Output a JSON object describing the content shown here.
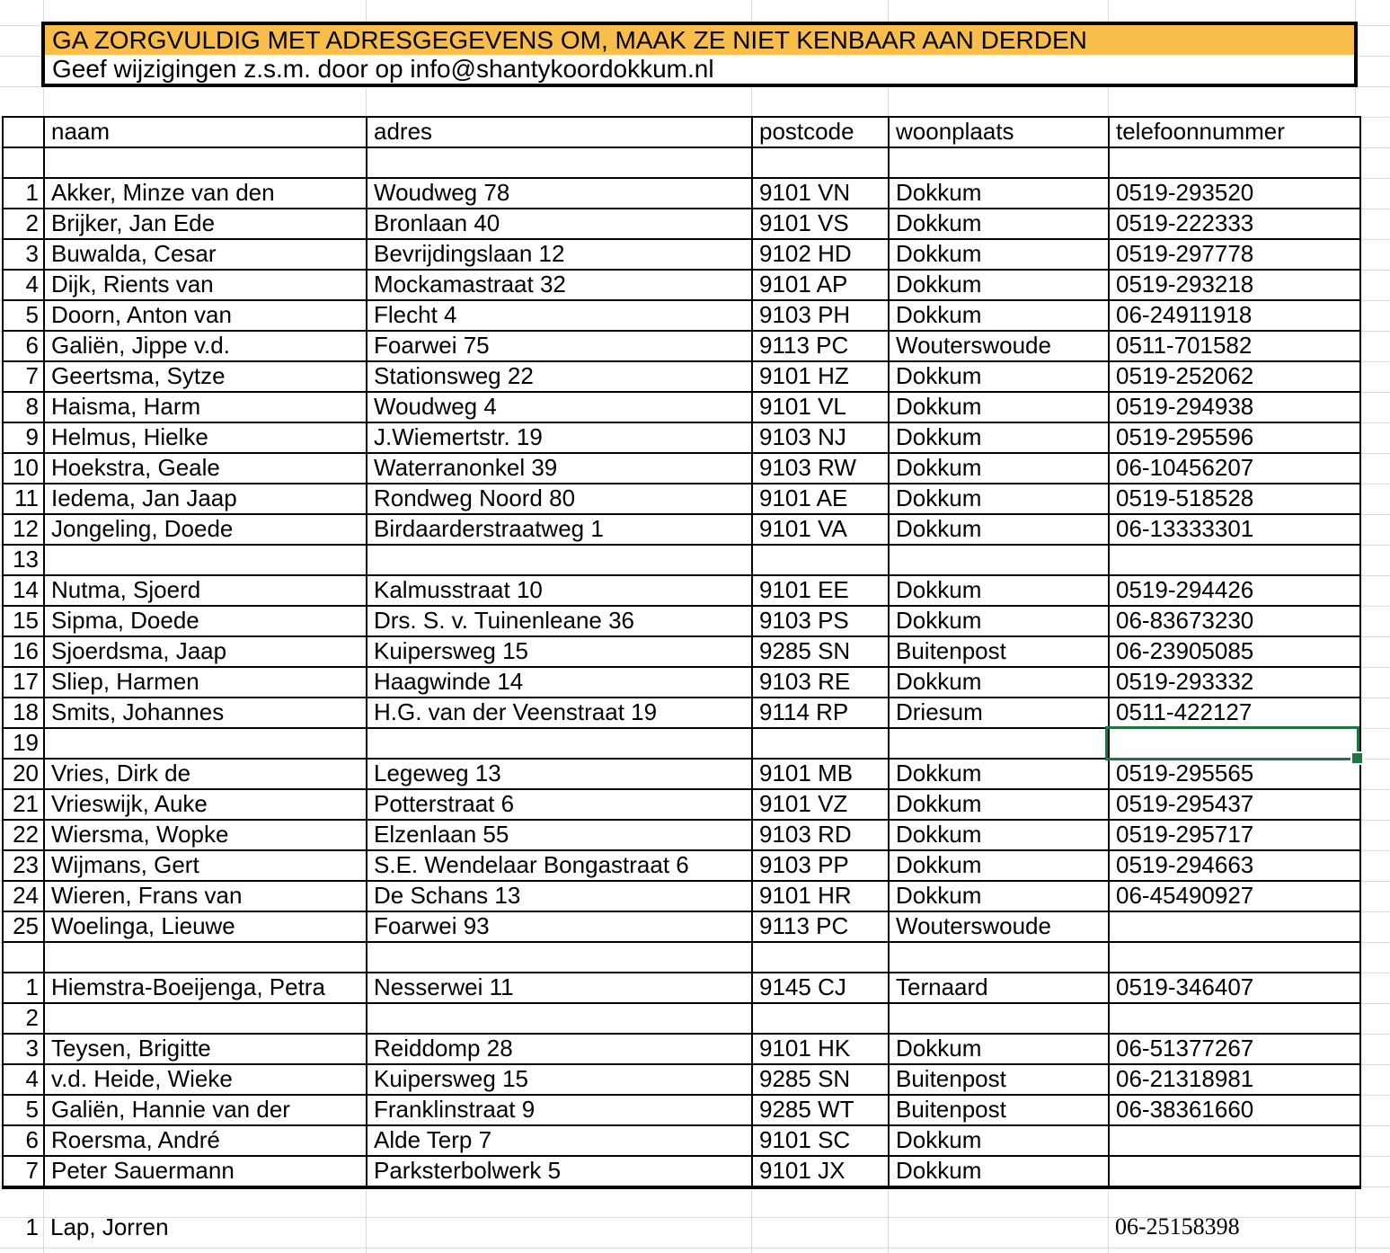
{
  "colors": {
    "banner_bg": "#F9BD4B",
    "selection": "#217346",
    "gridline": "#DADADA",
    "border": "#000000"
  },
  "banner": {
    "line1": "GA ZORGVULDIG MET ADRESGEGEVENS OM, MAAK ZE NIET KENBAAR AAN DERDEN",
    "line2": "Geef wijzigingen z.s.m. door op info@shantykoordokkum.nl"
  },
  "columns": {
    "naam": "naam",
    "adres": "adres",
    "postcode": "postcode",
    "woonplaats": "woonplaats",
    "telefoonnummer": "telefoonnummer"
  },
  "members": [
    {
      "num": "1",
      "naam": "Akker, Minze van den",
      "adres": "Woudweg 78",
      "postcode": "9101 VN",
      "woonplaats": "Dokkum",
      "telefoon": "0519-293520"
    },
    {
      "num": "2",
      "naam": "Brijker, Jan Ede",
      "adres": "Bronlaan 40",
      "postcode": "9101 VS",
      "woonplaats": "Dokkum",
      "telefoon": "0519-222333"
    },
    {
      "num": "3",
      "naam": "Buwalda, Cesar",
      "adres": "Bevrijdingslaan 12",
      "postcode": "9102 HD",
      "woonplaats": "Dokkum",
      "telefoon": "0519-297778"
    },
    {
      "num": "4",
      "naam": "Dijk, Rients van",
      "adres": "Mockamastraat 32",
      "postcode": "9101 AP",
      "woonplaats": "Dokkum",
      "telefoon": "0519-293218"
    },
    {
      "num": "5",
      "naam": "Doorn, Anton van",
      "adres": "Flecht 4",
      "postcode": "9103 PH",
      "woonplaats": "Dokkum",
      "telefoon": "06-24911918"
    },
    {
      "num": "6",
      "naam": "Galiën, Jippe v.d.",
      "adres": "Foarwei 75",
      "postcode": "9113 PC",
      "woonplaats": "Wouterswoude",
      "telefoon": "0511-701582"
    },
    {
      "num": "7",
      "naam": "Geertsma, Sytze",
      "adres": "Stationsweg 22",
      "postcode": "9101 HZ",
      "woonplaats": "Dokkum",
      "telefoon": "0519-252062"
    },
    {
      "num": "8",
      "naam": "Haisma, Harm",
      "adres": "Woudweg 4",
      "postcode": "9101 VL",
      "woonplaats": "Dokkum",
      "telefoon": "0519-294938"
    },
    {
      "num": "9",
      "naam": "Helmus, Hielke",
      "adres": "J.Wiemertstr. 19",
      "postcode": "9103 NJ",
      "woonplaats": "Dokkum",
      "telefoon": "0519-295596"
    },
    {
      "num": "10",
      "naam": "Hoekstra, Geale",
      "adres": "Waterranonkel 39",
      "postcode": "9103 RW",
      "woonplaats": "Dokkum",
      "telefoon": "06-10456207"
    },
    {
      "num": "11",
      "naam": "Iedema, Jan Jaap",
      "adres": "Rondweg Noord 80",
      "postcode": "9101 AE",
      "woonplaats": "Dokkum",
      "telefoon": "0519-518528"
    },
    {
      "num": "12",
      "naam": "Jongeling, Doede",
      "adres": "Birdaarderstraatweg 1",
      "postcode": "9101 VA",
      "woonplaats": "Dokkum",
      "telefoon": "06-13333301"
    },
    {
      "num": "13",
      "naam": "",
      "adres": "",
      "postcode": "",
      "woonplaats": "",
      "telefoon": ""
    },
    {
      "num": "14",
      "naam": "Nutma, Sjoerd",
      "adres": "Kalmusstraat 10",
      "postcode": "9101 EE",
      "woonplaats": "Dokkum",
      "telefoon": "0519-294426"
    },
    {
      "num": "15",
      "naam": "Sipma, Doede",
      "adres": "Drs. S. v. Tuinenleane 36",
      "postcode": "9103 PS",
      "woonplaats": "Dokkum",
      "telefoon": "06-83673230"
    },
    {
      "num": "16",
      "naam": "Sjoerdsma, Jaap",
      "adres": "Kuipersweg 15",
      "postcode": "9285 SN",
      "woonplaats": "Buitenpost",
      "telefoon": "06-23905085"
    },
    {
      "num": "17",
      "naam": "Sliep, Harmen",
      "adres": "Haagwinde 14",
      "postcode": "9103 RE",
      "woonplaats": "Dokkum",
      "telefoon": "0519-293332"
    },
    {
      "num": "18",
      "naam": "Smits, Johannes",
      "adres": "H.G. van der Veenstraat 19",
      "postcode": "9114 RP",
      "woonplaats": "Driesum",
      "telefoon": "0511-422127"
    },
    {
      "num": "19",
      "naam": "",
      "adres": "",
      "postcode": "",
      "woonplaats": "",
      "telefoon": ""
    },
    {
      "num": "20",
      "naam": "Vries, Dirk de",
      "adres": "Legeweg 13",
      "postcode": "9101 MB",
      "woonplaats": "Dokkum",
      "telefoon": "0519-295565"
    },
    {
      "num": "21",
      "naam": "Vrieswijk, Auke",
      "adres": "Potterstraat 6",
      "postcode": "9101 VZ",
      "woonplaats": "Dokkum",
      "telefoon": "0519-295437"
    },
    {
      "num": "22",
      "naam": "Wiersma, Wopke",
      "adres": "Elzenlaan 55",
      "postcode": "9103 RD",
      "woonplaats": "Dokkum",
      "telefoon": "0519-295717"
    },
    {
      "num": "23",
      "naam": "Wijmans, Gert",
      "adres": "S.E. Wendelaar Bongastraat 6",
      "postcode": "9103 PP",
      "woonplaats": "Dokkum",
      "telefoon": "0519-294663"
    },
    {
      "num": "24",
      "naam": "Wieren, Frans van",
      "adres": "De Schans 13",
      "postcode": "9101 HR",
      "woonplaats": "Dokkum",
      "telefoon": "06-45490927"
    },
    {
      "num": "25",
      "naam": "Woelinga, Lieuwe",
      "adres": "Foarwei 93",
      "postcode": "9113 PC",
      "woonplaats": "Wouterswoude",
      "telefoon": ""
    }
  ],
  "second_group": [
    {
      "num": "1",
      "naam": "Hiemstra-Boeijenga, Petra",
      "adres": "Nesserwei 11",
      "postcode": "9145 CJ",
      "woonplaats": "Ternaard",
      "telefoon": "0519-346407"
    },
    {
      "num": "2",
      "naam": "",
      "adres": "",
      "postcode": "",
      "woonplaats": "",
      "telefoon": ""
    },
    {
      "num": "3",
      "naam": "Teysen, Brigitte",
      "adres": "Reiddomp 28",
      "postcode": "9101 HK",
      "woonplaats": "Dokkum",
      "telefoon": "06-51377267"
    },
    {
      "num": "4",
      "naam": "v.d. Heide, Wieke",
      "adres": "Kuipersweg 15",
      "postcode": "9285 SN",
      "woonplaats": "Buitenpost",
      "telefoon": "06-21318981"
    },
    {
      "num": "5",
      "naam": "Galiën, Hannie van der",
      "adres": "Franklinstraat 9",
      "postcode": "9285 WT",
      "woonplaats": "Buitenpost",
      "telefoon": "06-38361660"
    },
    {
      "num": "6",
      "naam": "Roersma, André",
      "adres": "Alde Terp 7",
      "postcode": "9101 SC",
      "woonplaats": "Dokkum",
      "telefoon": ""
    },
    {
      "num": "7",
      "naam": "Peter Sauermann",
      "adres": "Parksterbolwerk 5",
      "postcode": "9101 JX",
      "woonplaats": "Dokkum",
      "telefoon": ""
    }
  ],
  "footer_member": {
    "num": "1",
    "naam": "Lap, Jorren",
    "telefoon": "06-25158398"
  },
  "selection": {
    "member_row": "19",
    "column": "telefoonnummer"
  }
}
